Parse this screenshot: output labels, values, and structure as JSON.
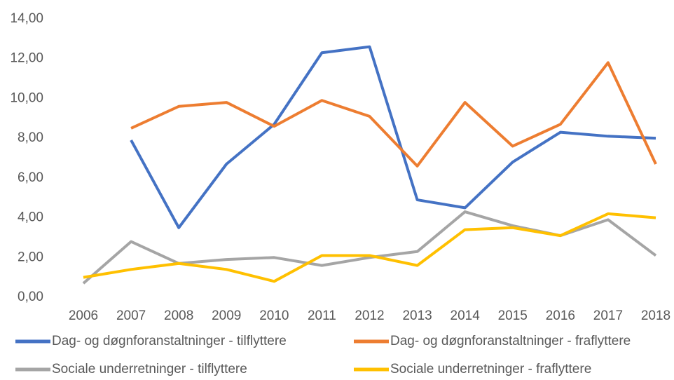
{
  "chart_data": {
    "type": "line",
    "categories": [
      "2006",
      "2007",
      "2008",
      "2009",
      "2010",
      "2011",
      "2012",
      "2013",
      "2014",
      "2015",
      "2016",
      "2017",
      "2018"
    ],
    "series": [
      {
        "name": "Dag- og døgnforanstaltninger - tilflyttere",
        "color": "#4472c4",
        "values": [
          null,
          7.9,
          3.5,
          6.7,
          8.7,
          12.3,
          12.6,
          4.9,
          4.5,
          6.8,
          8.3,
          8.1,
          8.0
        ]
      },
      {
        "name": "Dag- og døgnforanstaltninger - fraflyttere",
        "color": "#ed7d31",
        "values": [
          null,
          8.5,
          9.6,
          9.8,
          8.6,
          9.9,
          9.1,
          6.6,
          9.8,
          7.6,
          8.7,
          11.8,
          6.7
        ]
      },
      {
        "name": "Sociale underretninger - tilflyttere",
        "color": "#a5a5a5",
        "values": [
          0.7,
          2.8,
          1.7,
          1.9,
          2.0,
          1.6,
          2.0,
          2.3,
          4.3,
          3.6,
          3.1,
          3.9,
          2.1
        ]
      },
      {
        "name": "Sociale underretninger - fraflyttere",
        "color": "#ffc000",
        "values": [
          1.0,
          1.4,
          1.7,
          1.4,
          0.8,
          2.1,
          2.1,
          1.6,
          3.4,
          3.5,
          3.1,
          4.2,
          4.0
        ]
      }
    ],
    "ylim": [
      0,
      14
    ],
    "yticks": [
      {
        "value": 0,
        "label": "0,00"
      },
      {
        "value": 2,
        "label": "2,00"
      },
      {
        "value": 4,
        "label": "4,00"
      },
      {
        "value": 6,
        "label": "6,00"
      },
      {
        "value": 8,
        "label": "8,00"
      },
      {
        "value": 10,
        "label": "10,00"
      },
      {
        "value": 12,
        "label": "12,00"
      },
      {
        "value": 14,
        "label": "14,00"
      }
    ],
    "grid": false,
    "legend": "bottom"
  }
}
